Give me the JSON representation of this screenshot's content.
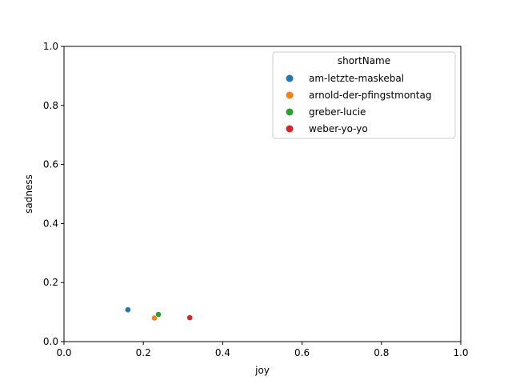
{
  "chart_data": {
    "type": "scatter",
    "title": "",
    "xlabel": "joy",
    "ylabel": "sadness",
    "xlim": [
      0,
      1
    ],
    "ylim": [
      0,
      1
    ],
    "xticks": [
      "0.0",
      "0.2",
      "0.4",
      "0.6",
      "0.8",
      "1.0"
    ],
    "yticks": [
      "0.0",
      "0.2",
      "0.4",
      "0.6",
      "0.8",
      "1.0"
    ],
    "grid": false,
    "legend_title": "shortName",
    "legend_position": "top-right",
    "series": [
      {
        "name": "am-letzte-maskebal",
        "color": "#1f77b4",
        "x": [
          0.161
        ],
        "y": [
          0.108
        ]
      },
      {
        "name": "arnold-der-pfingstmontag",
        "color": "#ff7f0e",
        "x": [
          0.228
        ],
        "y": [
          0.08
        ]
      },
      {
        "name": "greber-lucie",
        "color": "#2ca02c",
        "x": [
          0.238
        ],
        "y": [
          0.092
        ]
      },
      {
        "name": "weber-yo-yo",
        "color": "#d62728",
        "x": [
          0.317
        ],
        "y": [
          0.081
        ]
      }
    ]
  }
}
